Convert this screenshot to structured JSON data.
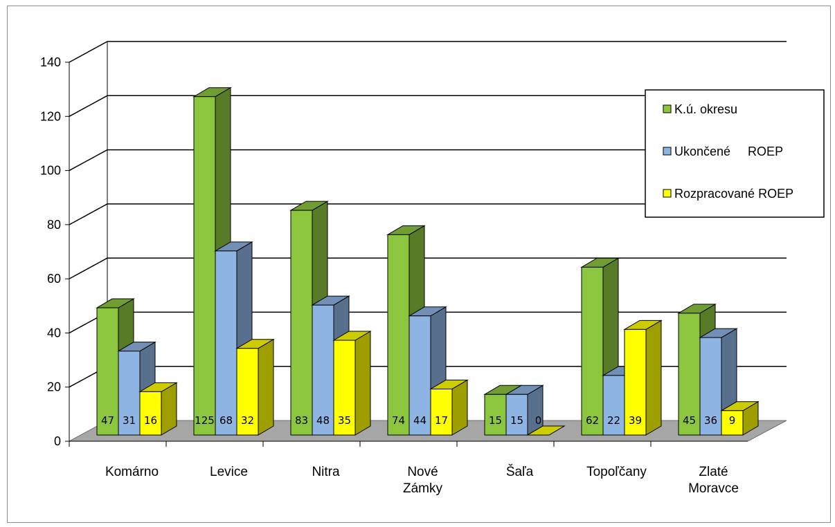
{
  "chart_data": {
    "type": "bar",
    "categories": [
      "Komárno",
      "Levice",
      "Nitra",
      "Nové Zámky",
      "Šaľa",
      "Topoľčany",
      "Zlaté Moravce"
    ],
    "series": [
      {
        "name": "K.ú. okresu",
        "values": [
          47,
          125,
          83,
          74,
          15,
          62,
          45
        ],
        "color": "#8cc63f"
      },
      {
        "name": "Ukončené     ROEP",
        "values": [
          31,
          68,
          48,
          44,
          15,
          22,
          36
        ],
        "color": "#8eb4e3"
      },
      {
        "name": "Rozpracované ROEP",
        "values": [
          16,
          32,
          35,
          17,
          0,
          39,
          9
        ],
        "color": "#ffff00"
      }
    ],
    "y_ticks": [
      "0",
      "20",
      "40",
      "60",
      "80",
      "100",
      "120",
      "140"
    ],
    "ylim": [
      0,
      140
    ],
    "grid": true,
    "legend_position": "right",
    "three_d": true,
    "floor_color": "#a6a6a6"
  }
}
